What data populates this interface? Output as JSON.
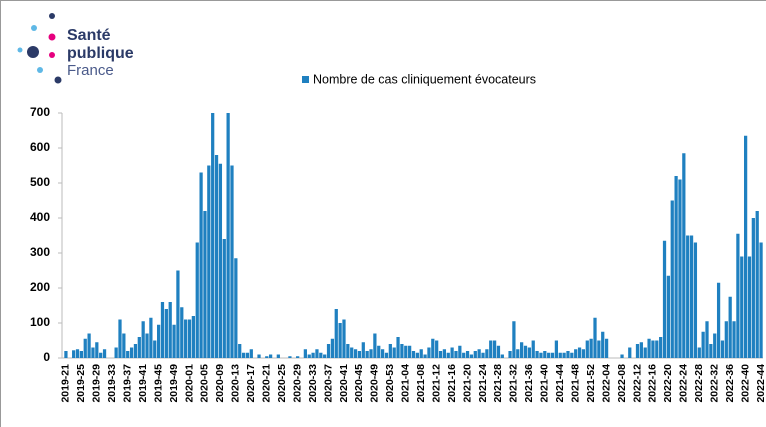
{
  "logo": {
    "lines": [
      "Santé",
      "publique",
      "France"
    ]
  },
  "chart_data": {
    "type": "bar",
    "categories": [
      "2019-21",
      null,
      null,
      null,
      "2019-25",
      null,
      null,
      null,
      "2019-29",
      null,
      null,
      null,
      "2019-33",
      null,
      null,
      null,
      "2019-37",
      null,
      null,
      null,
      "2019-41",
      null,
      null,
      null,
      "2019-45",
      null,
      null,
      null,
      "2019-49",
      null,
      null,
      null,
      "2020-01",
      null,
      null,
      null,
      "2020-05",
      null,
      null,
      null,
      "2020-09",
      null,
      null,
      null,
      "2020-13",
      null,
      null,
      null,
      "2020-17",
      null,
      null,
      null,
      "2020-21",
      null,
      null,
      null,
      "2020-25",
      null,
      null,
      null,
      "2020-29",
      null,
      null,
      null,
      "2020-33",
      null,
      null,
      null,
      "2020-37",
      null,
      null,
      null,
      "2020-41",
      null,
      null,
      null,
      "2020-45",
      null,
      null,
      null,
      "2020-49",
      null,
      null,
      null,
      "2020-53",
      null,
      null,
      null,
      "2021-04",
      null,
      null,
      null,
      "2021-08",
      null,
      null,
      null,
      "2021-12",
      null,
      null,
      null,
      "2021-16",
      null,
      null,
      null,
      "2021-20",
      null,
      null,
      null,
      "2021-24",
      null,
      null,
      null,
      "2021-28",
      null,
      null,
      null,
      "2021-32",
      null,
      null,
      null,
      "2021-36",
      null,
      null,
      null,
      "2021-40",
      null,
      null,
      null,
      "2021-44",
      null,
      null,
      null,
      "2021-48",
      null,
      null,
      null,
      "2021-52",
      null,
      null,
      null,
      "2022-04",
      null,
      null,
      null,
      "2022-08",
      null,
      null,
      null,
      "2022-12",
      null,
      null,
      null,
      "2022-16",
      null,
      null,
      null,
      "2022-20",
      null,
      null,
      null,
      "2022-24",
      null,
      null,
      null,
      "2022-28",
      null,
      null,
      null,
      "2022-32",
      null,
      null,
      null,
      "2022-36",
      null,
      null,
      null,
      "2022-40",
      null,
      null,
      null,
      "2022-44"
    ],
    "series": [
      {
        "name": "Nombre de cas cliniquement évocateurs",
        "color": "#1f80c0",
        "values": [
          20,
          0,
          22,
          25,
          20,
          55,
          70,
          30,
          45,
          15,
          25,
          0,
          0,
          30,
          110,
          70,
          20,
          30,
          40,
          60,
          105,
          70,
          115,
          50,
          95,
          160,
          140,
          160,
          95,
          250,
          145,
          110,
          110,
          120,
          330,
          530,
          420,
          550,
          700,
          580,
          555,
          340,
          700,
          550,
          285,
          40,
          15,
          15,
          25,
          0,
          10,
          0,
          5,
          10,
          0,
          10,
          0,
          0,
          5,
          0,
          5,
          0,
          25,
          10,
          15,
          25,
          15,
          10,
          40,
          55,
          140,
          100,
          110,
          40,
          30,
          25,
          20,
          45,
          20,
          25,
          70,
          35,
          25,
          15,
          40,
          30,
          60,
          40,
          35,
          35,
          20,
          15,
          25,
          10,
          30,
          55,
          50,
          20,
          25,
          15,
          30,
          20,
          35,
          15,
          20,
          10,
          20,
          25,
          15,
          25,
          50,
          50,
          35,
          10,
          0,
          20,
          105,
          25,
          45,
          35,
          30,
          50,
          20,
          15,
          20,
          15,
          15,
          50,
          15,
          15,
          20,
          15,
          25,
          30,
          25,
          50,
          55,
          115,
          50,
          75,
          55,
          0,
          0,
          0,
          10,
          0,
          30,
          0,
          40,
          45,
          30,
          55,
          50,
          50,
          60,
          335,
          235,
          450,
          520,
          510,
          585,
          350,
          350,
          330,
          30,
          75,
          105,
          40,
          70,
          215,
          50,
          105,
          175,
          105,
          355,
          290,
          635,
          290,
          400,
          420,
          330
        ]
      }
    ],
    "ylim": [
      0,
      700
    ],
    "yticks": [
      0,
      100,
      200,
      300,
      400,
      500,
      600,
      700
    ],
    "legend": "top"
  }
}
